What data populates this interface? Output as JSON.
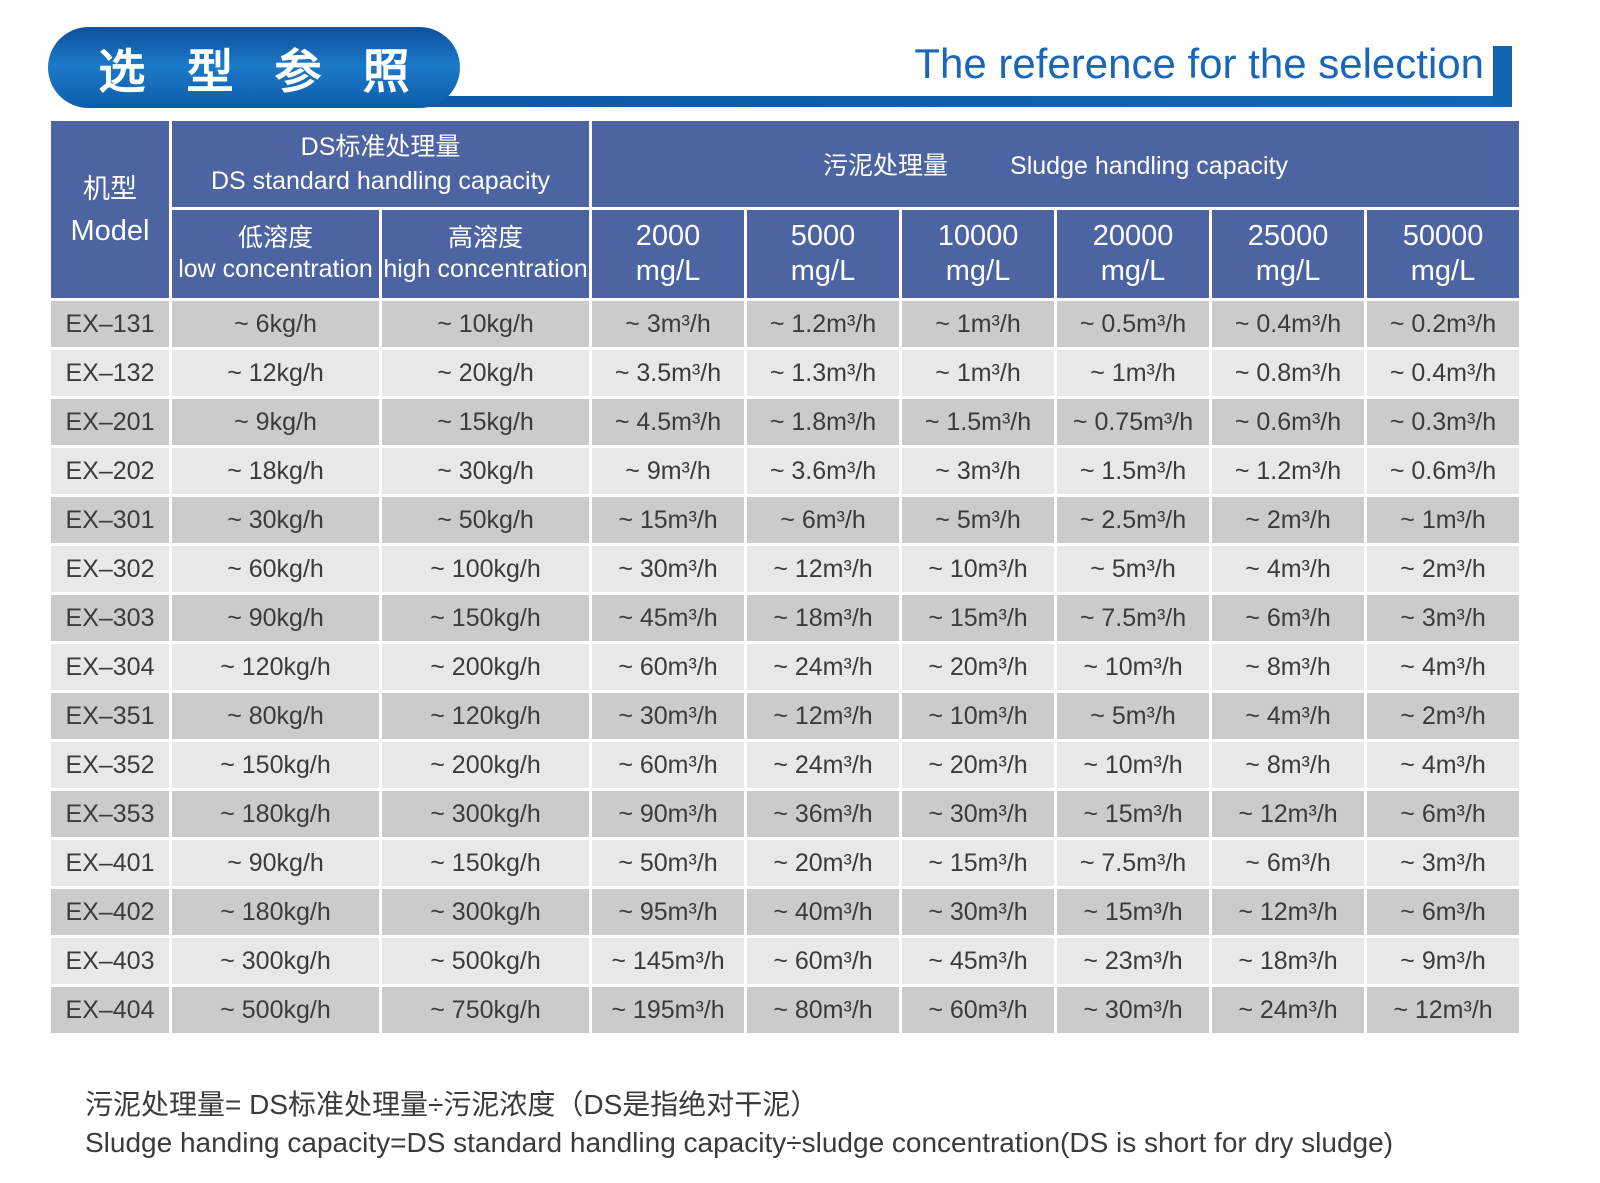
{
  "colors": {
    "header_blue": "#4d64a3",
    "row_dark": "#cbcbcb",
    "row_light": "#e8e8e8",
    "title_bar_blue": "#1166b4",
    "title_text_blue": "#1b65b8"
  },
  "title": {
    "zh": "选 型 参 照",
    "en": "The reference for the selection"
  },
  "table": {
    "model_header": {
      "zh": "机型",
      "en": "Model"
    },
    "ds_group": {
      "zh": "DS标准处理量",
      "en": "DS standard handling capacity"
    },
    "sludge_group": {
      "zh": "污泥处理量",
      "en": "Sludge handling capacity"
    },
    "low_header": {
      "zh": "低溶度",
      "en": "low concentration"
    },
    "high_header": {
      "zh": "高溶度",
      "en": "high concentration"
    },
    "concentration_columns": [
      "2000",
      "5000",
      "10000",
      "20000",
      "25000",
      "50000"
    ],
    "concentration_unit": "mg/L",
    "rows": [
      [
        "EX–131",
        "~ 6kg/h",
        "~ 10kg/h",
        "~ 3m³/h",
        "~ 1.2m³/h",
        "~ 1m³/h",
        "~ 0.5m³/h",
        "~ 0.4m³/h",
        "~ 0.2m³/h"
      ],
      [
        "EX–132",
        "~ 12kg/h",
        "~ 20kg/h",
        "~ 3.5m³/h",
        "~ 1.3m³/h",
        "~ 1m³/h",
        "~ 1m³/h",
        "~ 0.8m³/h",
        "~ 0.4m³/h"
      ],
      [
        "EX–201",
        "~ 9kg/h",
        "~ 15kg/h",
        "~ 4.5m³/h",
        "~ 1.8m³/h",
        "~ 1.5m³/h",
        "~ 0.75m³/h",
        "~ 0.6m³/h",
        "~ 0.3m³/h"
      ],
      [
        "EX–202",
        "~ 18kg/h",
        "~ 30kg/h",
        "~ 9m³/h",
        "~ 3.6m³/h",
        "~ 3m³/h",
        "~ 1.5m³/h",
        "~ 1.2m³/h",
        "~ 0.6m³/h"
      ],
      [
        "EX–301",
        "~ 30kg/h",
        "~ 50kg/h",
        "~ 15m³/h",
        "~ 6m³/h",
        "~ 5m³/h",
        "~ 2.5m³/h",
        "~ 2m³/h",
        "~ 1m³/h"
      ],
      [
        "EX–302",
        "~ 60kg/h",
        "~ 100kg/h",
        "~ 30m³/h",
        "~ 12m³/h",
        "~ 10m³/h",
        "~ 5m³/h",
        "~ 4m³/h",
        "~ 2m³/h"
      ],
      [
        "EX–303",
        "~ 90kg/h",
        "~ 150kg/h",
        "~ 45m³/h",
        "~ 18m³/h",
        "~ 15m³/h",
        "~ 7.5m³/h",
        "~ 6m³/h",
        "~ 3m³/h"
      ],
      [
        "EX–304",
        "~ 120kg/h",
        "~ 200kg/h",
        "~ 60m³/h",
        "~ 24m³/h",
        "~ 20m³/h",
        "~ 10m³/h",
        "~ 8m³/h",
        "~ 4m³/h"
      ],
      [
        "EX–351",
        "~ 80kg/h",
        "~ 120kg/h",
        "~ 30m³/h",
        "~ 12m³/h",
        "~ 10m³/h",
        "~ 5m³/h",
        "~ 4m³/h",
        "~ 2m³/h"
      ],
      [
        "EX–352",
        "~ 150kg/h",
        "~ 200kg/h",
        "~ 60m³/h",
        "~ 24m³/h",
        "~ 20m³/h",
        "~ 10m³/h",
        "~ 8m³/h",
        "~ 4m³/h"
      ],
      [
        "EX–353",
        "~ 180kg/h",
        "~ 300kg/h",
        "~ 90m³/h",
        "~ 36m³/h",
        "~ 30m³/h",
        "~ 15m³/h",
        "~ 12m³/h",
        "~ 6m³/h"
      ],
      [
        "EX–401",
        "~ 90kg/h",
        "~ 150kg/h",
        "~ 50m³/h",
        "~ 20m³/h",
        "~ 15m³/h",
        "~ 7.5m³/h",
        "~ 6m³/h",
        "~ 3m³/h"
      ],
      [
        "EX–402",
        "~ 180kg/h",
        "~ 300kg/h",
        "~ 95m³/h",
        "~ 40m³/h",
        "~ 30m³/h",
        "~ 15m³/h",
        "~ 12m³/h",
        "~ 6m³/h"
      ],
      [
        "EX–403",
        "~ 300kg/h",
        "~ 500kg/h",
        "~ 145m³/h",
        "~ 60m³/h",
        "~ 45m³/h",
        "~ 23m³/h",
        "~ 18m³/h",
        "~ 9m³/h"
      ],
      [
        "EX–404",
        "~ 500kg/h",
        "~ 750kg/h",
        "~ 195m³/h",
        "~ 80m³/h",
        "~ 60m³/h",
        "~ 30m³/h",
        "~ 24m³/h",
        "~ 12m³/h"
      ]
    ]
  },
  "notes": {
    "zh": "污泥处理量= DS标准处理量÷污泥浓度（DS是指绝对干泥）",
    "en": "Sludge handing capacity=DS standard handling capacity÷sludge concentration(DS is short for dry sludge)"
  }
}
